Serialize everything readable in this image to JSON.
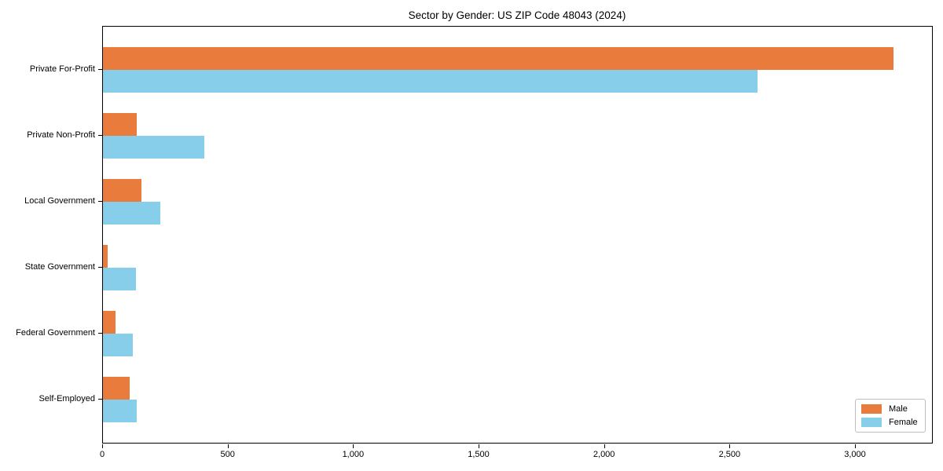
{
  "chart_data": {
    "type": "bar",
    "orientation": "horizontal",
    "title": "Sector by Gender: US ZIP Code 48043 (2024)",
    "categories": [
      "Private For-Profit",
      "Private Non-Profit",
      "Local Government",
      "State Government",
      "Federal Government",
      "Self-Employed"
    ],
    "series": [
      {
        "name": "Male",
        "color": "#e97c3c",
        "values": [
          3150,
          135,
          155,
          20,
          50,
          105
        ]
      },
      {
        "name": "Female",
        "color": "#87ceeb",
        "values": [
          2610,
          405,
          230,
          130,
          120,
          135
        ]
      }
    ],
    "xlabel": "",
    "ylabel": "",
    "xlim": [
      0,
      3310
    ],
    "x_ticks": [
      0,
      500,
      1000,
      1500,
      2000,
      2500,
      3000
    ],
    "x_tick_labels": [
      "0",
      "500",
      "1,000",
      "1,500",
      "2,000",
      "2,500",
      "3,000"
    ],
    "grid": false,
    "legend": {
      "position": "lower-right",
      "entries": [
        "Male",
        "Female"
      ]
    },
    "colors": {
      "background": "#ffffff",
      "axis": "#000000",
      "legend_border": "#c0c0c0"
    }
  }
}
